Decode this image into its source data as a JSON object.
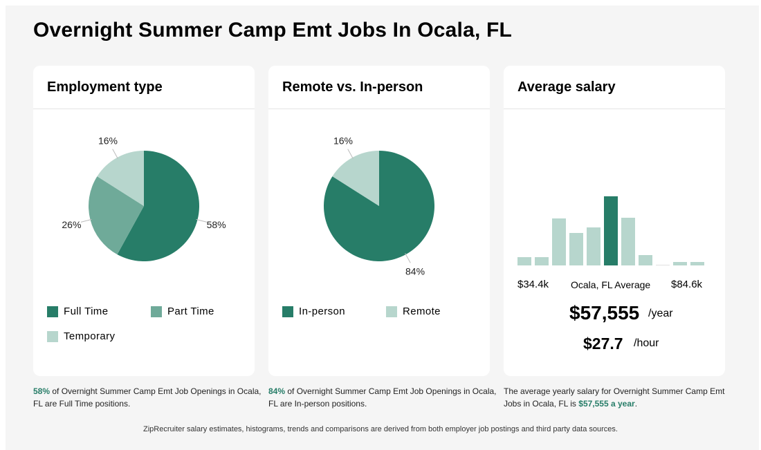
{
  "page_title": "Overnight Summer Camp Emt Jobs In Ocala, FL",
  "colors": {
    "dark": "#277d68",
    "mid": "#6faa99",
    "light": "#b7d6cd",
    "faint": "#e0e0e0"
  },
  "employment": {
    "title": "Employment type",
    "legend": [
      "Full Time",
      "Part Time",
      "Temporary"
    ],
    "caption": {
      "pct": "58%",
      "text": " of Overnight Summer Camp Emt Job Openings in Ocala, FL are Full Time positions."
    }
  },
  "remote": {
    "title": "Remote vs. In-person",
    "legend": [
      "In-person",
      "Remote"
    ],
    "caption": {
      "pct": "84%",
      "text": " of Overnight Summer Camp Emt Job Openings in Ocala, FL are In-person positions."
    }
  },
  "salary": {
    "title": "Average salary",
    "min_label": "$34.4k",
    "max_label": "$84.6k",
    "avg_label": "Ocala, FL Average",
    "yearly": "$57,555",
    "yearly_unit": "/year",
    "hourly": "$27.7",
    "hourly_unit": "/hour",
    "caption": {
      "text": "The average yearly salary for Overnight Summer Camp Emt Jobs in Ocala, FL is ",
      "amount": "$57,555 a year",
      "end": "."
    }
  },
  "footer": "ZipRecruiter salary estimates, histograms, trends and comparisons are derived from both employer job postings and third party data sources.",
  "chart_data": [
    {
      "type": "pie",
      "title": "Employment type",
      "categories": [
        "Full Time",
        "Part Time",
        "Temporary"
      ],
      "values": [
        58,
        26,
        16
      ],
      "labels": [
        "58%",
        "26%",
        "16%"
      ],
      "colors": [
        "#277d68",
        "#6faa99",
        "#b7d6cd"
      ],
      "legend": "bottom"
    },
    {
      "type": "pie",
      "title": "Remote vs. In-person",
      "categories": [
        "In-person",
        "Remote"
      ],
      "values": [
        84,
        16
      ],
      "labels": [
        "84%",
        "16%"
      ],
      "colors": [
        "#277d68",
        "#b7d6cd"
      ],
      "legend": "bottom"
    },
    {
      "type": "bar",
      "title": "Average salary",
      "x_range": [
        "$34.4k",
        "$84.6k"
      ],
      "values": [
        12,
        12,
        68,
        47,
        55,
        100,
        69,
        15,
        1,
        5,
        5
      ],
      "highlight_index": 5
    }
  ]
}
